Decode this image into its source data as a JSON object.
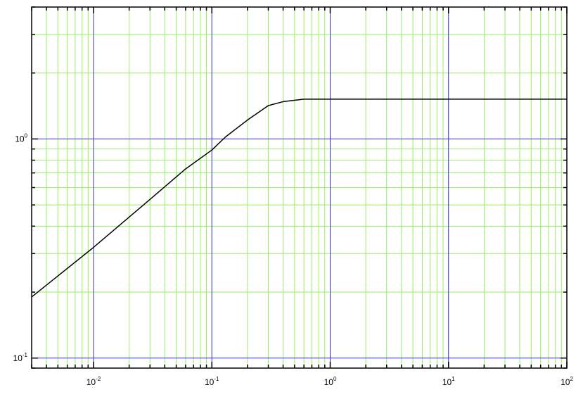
{
  "chart_data": {
    "type": "line",
    "title": "",
    "xlabel": "",
    "ylabel": "",
    "x_scale": "log",
    "y_scale": "log",
    "xlim": [
      0.003,
      100
    ],
    "ylim": [
      0.09,
      4
    ],
    "grid": true,
    "colors": {
      "major_grid": "#3333cc",
      "minor_grid": "#99ee66",
      "line": "#000000",
      "axes": "#000000"
    },
    "x_ticks": [
      {
        "base": "10",
        "exp": "-2",
        "value": 0.01
      },
      {
        "base": "10",
        "exp": "-1",
        "value": 0.1
      },
      {
        "base": "10",
        "exp": "0",
        "value": 1
      },
      {
        "base": "10",
        "exp": "1",
        "value": 10
      },
      {
        "base": "10",
        "exp": "2",
        "value": 100
      }
    ],
    "y_ticks": [
      {
        "base": "10",
        "exp": "-1",
        "value": 0.1
      },
      {
        "base": "10",
        "exp": "0",
        "value": 1
      }
    ],
    "series": [
      {
        "x": [
          0.003,
          0.01,
          0.03,
          0.06,
          0.1,
          0.13,
          0.2,
          0.3,
          0.4,
          0.6,
          1,
          10,
          100
        ],
        "y": [
          0.19,
          0.32,
          0.53,
          0.73,
          0.89,
          1.02,
          1.22,
          1.42,
          1.48,
          1.52,
          1.52,
          1.52,
          1.52
        ]
      }
    ]
  }
}
